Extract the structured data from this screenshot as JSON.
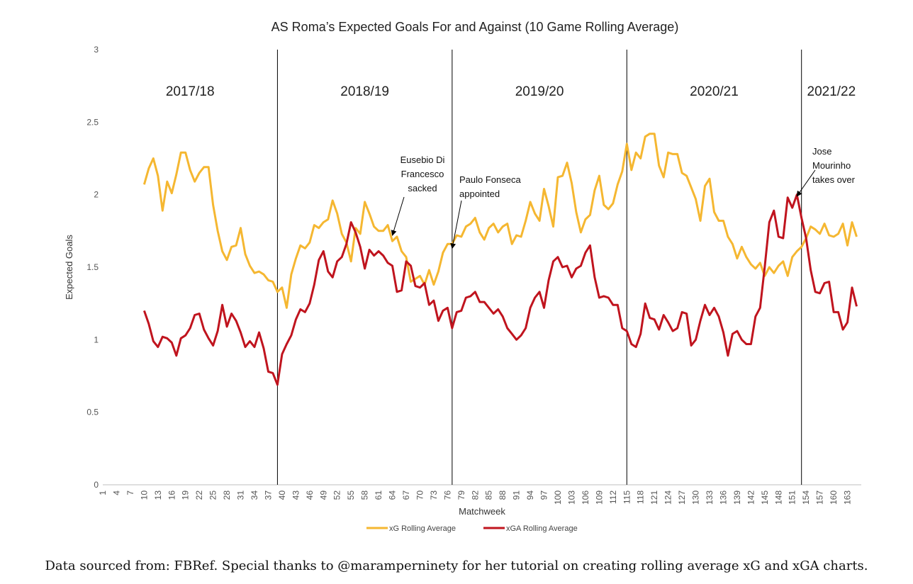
{
  "chart_data": {
    "type": "line",
    "title": "AS Roma’s Expected Goals For and Against (10 Game Rolling Average)",
    "xlabel": "Matchweek",
    "ylabel": "Expected Goals",
    "ylim": [
      0,
      3
    ],
    "yticks": [
      "0",
      "0.5",
      "1",
      "1.5",
      "2",
      "2.5",
      "3"
    ],
    "xlim": [
      1,
      165
    ],
    "xtick_step": 3,
    "grid": false,
    "legend_position": "bottom",
    "series": [
      {
        "name": "xG Rolling Average",
        "color": "#f5b731",
        "x_start": 10,
        "values": [
          2.07,
          2.18,
          2.25,
          2.13,
          1.89,
          2.09,
          2.01,
          2.14,
          2.29,
          2.29,
          2.17,
          2.09,
          2.15,
          2.19,
          2.19,
          1.93,
          1.75,
          1.61,
          1.55,
          1.64,
          1.65,
          1.77,
          1.59,
          1.51,
          1.46,
          1.47,
          1.45,
          1.41,
          1.4,
          1.33,
          1.36,
          1.22,
          1.45,
          1.56,
          1.65,
          1.63,
          1.67,
          1.79,
          1.77,
          1.81,
          1.83,
          1.96,
          1.87,
          1.73,
          1.67,
          1.54,
          1.77,
          1.73,
          1.95,
          1.87,
          1.78,
          1.75,
          1.75,
          1.79,
          1.68,
          1.71,
          1.61,
          1.57,
          1.4,
          1.42,
          1.44,
          1.38,
          1.48,
          1.38,
          1.47,
          1.6,
          1.66,
          1.66,
          1.72,
          1.71,
          1.78,
          1.8,
          1.84,
          1.74,
          1.69,
          1.77,
          1.8,
          1.74,
          1.78,
          1.8,
          1.66,
          1.72,
          1.71,
          1.82,
          1.95,
          1.87,
          1.82,
          2.04,
          1.92,
          1.78,
          2.12,
          2.13,
          2.22,
          2.08,
          1.88,
          1.74,
          1.83,
          1.86,
          2.03,
          2.13,
          1.93,
          1.9,
          1.94,
          2.07,
          2.16,
          2.35,
          2.17,
          2.29,
          2.25,
          2.4,
          2.42,
          2.42,
          2.2,
          2.12,
          2.29,
          2.28,
          2.28,
          2.15,
          2.13,
          2.05,
          1.97,
          1.82,
          2.06,
          2.11,
          1.88,
          1.82,
          1.82,
          1.71,
          1.66,
          1.56,
          1.64,
          1.57,
          1.52,
          1.49,
          1.53,
          1.44,
          1.5,
          1.46,
          1.51,
          1.54,
          1.44,
          1.57,
          1.61,
          1.64,
          1.7,
          1.78,
          1.76,
          1.73,
          1.8,
          1.72,
          1.71,
          1.73,
          1.8,
          1.65,
          1.81,
          1.71
        ]
      },
      {
        "name": "xGA Rolling Average",
        "color": "#c0141e",
        "x_start": 10,
        "values": [
          1.2,
          1.11,
          0.99,
          0.95,
          1.02,
          1.01,
          0.98,
          0.89,
          1.01,
          1.03,
          1.08,
          1.17,
          1.18,
          1.07,
          1.01,
          0.96,
          1.06,
          1.24,
          1.09,
          1.18,
          1.13,
          1.05,
          0.95,
          0.99,
          0.95,
          1.05,
          0.94,
          0.78,
          0.77,
          0.69,
          0.9,
          0.97,
          1.03,
          1.14,
          1.21,
          1.19,
          1.25,
          1.38,
          1.55,
          1.61,
          1.47,
          1.43,
          1.54,
          1.57,
          1.66,
          1.81,
          1.74,
          1.64,
          1.49,
          1.62,
          1.58,
          1.61,
          1.58,
          1.53,
          1.51,
          1.33,
          1.34,
          1.54,
          1.51,
          1.37,
          1.36,
          1.39,
          1.24,
          1.27,
          1.13,
          1.2,
          1.22,
          1.08,
          1.19,
          1.2,
          1.29,
          1.3,
          1.33,
          1.26,
          1.26,
          1.22,
          1.18,
          1.21,
          1.16,
          1.08,
          1.04,
          1.0,
          1.03,
          1.08,
          1.22,
          1.29,
          1.33,
          1.22,
          1.41,
          1.54,
          1.57,
          1.5,
          1.51,
          1.43,
          1.49,
          1.51,
          1.6,
          1.65,
          1.43,
          1.29,
          1.3,
          1.29,
          1.24,
          1.24,
          1.08,
          1.06,
          0.97,
          0.95,
          1.04,
          1.25,
          1.15,
          1.14,
          1.07,
          1.17,
          1.12,
          1.06,
          1.08,
          1.19,
          1.18,
          0.96,
          1.0,
          1.13,
          1.24,
          1.17,
          1.22,
          1.16,
          1.05,
          0.89,
          1.04,
          1.06,
          1.0,
          0.97,
          0.97,
          1.16,
          1.22,
          1.5,
          1.81,
          1.89,
          1.71,
          1.7,
          1.98,
          1.91,
          2.0,
          1.84,
          1.7,
          1.48,
          1.33,
          1.32,
          1.39,
          1.4,
          1.19,
          1.19,
          1.07,
          1.12,
          1.36,
          1.23
        ]
      }
    ],
    "seasons": [
      {
        "label": "2017/18",
        "start": 1
      },
      {
        "label": "2018/19",
        "start": 39
      },
      {
        "label": "2019/20",
        "start": 77
      },
      {
        "label": "2020/21",
        "start": 115
      },
      {
        "label": "2021/22",
        "start": 153
      }
    ],
    "dividers": [
      39,
      77,
      115,
      153
    ],
    "annotations": [
      {
        "lines": [
          "Eusebio Di",
          "Francesco",
          "sacked"
        ],
        "target_x": 64,
        "target_y": 1.71
      },
      {
        "lines": [
          "Paulo Fonseca",
          "appointed"
        ],
        "target_x": 77,
        "target_y": 1.62
      },
      {
        "lines": [
          "Jose",
          "Mourinho",
          "takes over"
        ],
        "target_x": 152,
        "target_y": 1.98
      }
    ]
  },
  "caption": "Data sourced from: FBRef. Special thanks to @maramperninety for her tutorial on creating rolling average xG and xGA charts."
}
